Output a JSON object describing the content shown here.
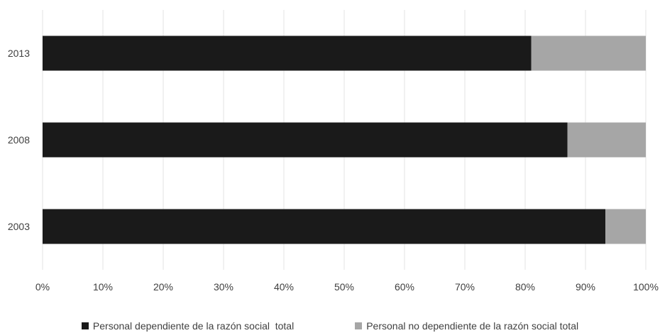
{
  "chart_data": {
    "type": "bar",
    "orientation": "horizontal",
    "stacked": "percent",
    "categories": [
      "2013",
      "2008",
      "2003"
    ],
    "series": [
      {
        "name": "Personal dependiente de la razón social  total",
        "color": "#1a1a1a",
        "values": [
          81,
          87,
          93.3
        ]
      },
      {
        "name": "Personal no dependiente de la razón social total",
        "color": "#a6a6a6",
        "values": [
          19,
          13,
          6.7
        ]
      }
    ],
    "xticks": [
      "0%",
      "10%",
      "20%",
      "30%",
      "40%",
      "50%",
      "60%",
      "70%",
      "80%",
      "90%",
      "100%"
    ],
    "xlim": [
      0,
      100
    ],
    "grid": "vertical",
    "legend_position": "bottom"
  }
}
